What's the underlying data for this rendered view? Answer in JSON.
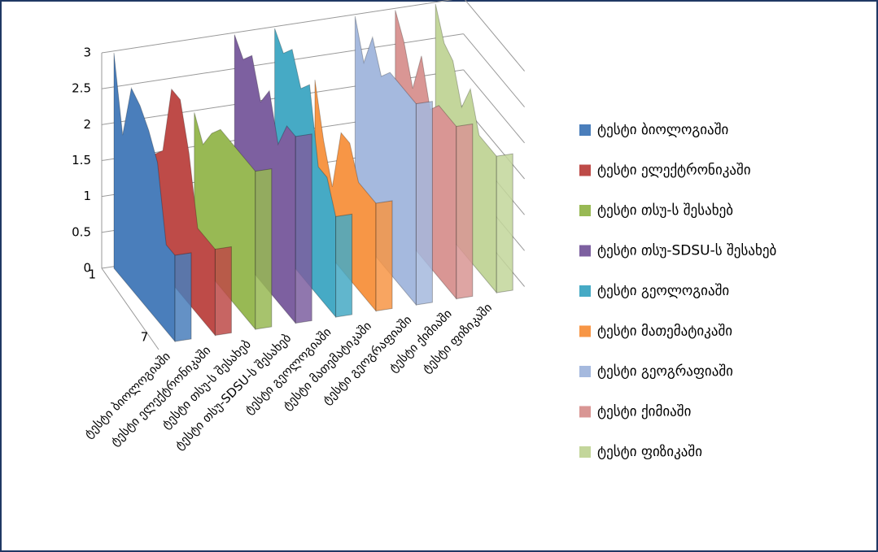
{
  "chart_data": {
    "type": "area",
    "categories": [
      "1",
      null,
      null,
      null,
      null,
      null,
      "7",
      null
    ],
    "ylim": [
      0,
      3
    ],
    "yticks": [
      0,
      0.5,
      1,
      1.5,
      2,
      2.5,
      3
    ],
    "grid": true,
    "legend": "right",
    "series": [
      {
        "name": "ტესტი ბიოლოგიაში",
        "color": "#4a7ebb",
        "values": [
          3,
          2,
          2.8,
          2.7,
          2.5,
          2.2,
          1.2,
          1.2
        ]
      },
      {
        "name": "ტესტი ელექტრონიკაში",
        "color": "#be4b48",
        "values": [
          1.5,
          1.7,
          2.7,
          2.7,
          2.1,
          1.2,
          1.2,
          1.2
        ]
      },
      {
        "name": "ტესტი თსუ-ს შესახებ",
        "color": "#98b954",
        "values": [
          2,
          1.7,
          2,
          2.2,
          2.2,
          2.2,
          2.2,
          2.2
        ]
      },
      {
        "name": "ტესტი თსუ-SDSU-ს შესახებ",
        "color": "#7d60a0",
        "values": [
          3,
          2.8,
          3,
          2.5,
          2.8,
          2.2,
          2.6,
          2.6
        ]
      },
      {
        "name": "ტესტი გეოლოგიაში",
        "color": "#46aac5",
        "values": [
          3,
          2.8,
          3,
          2.6,
          2.8,
          1.8,
          1.8,
          1.4
        ]
      },
      {
        "name": "ტესტი მათემატიკაში",
        "color": "#f79646",
        "values": [
          2.2,
          1.5,
          1,
          1.9,
          1.9,
          1.5,
          1.5,
          1.5
        ]
      },
      {
        "name": "ტესტი გეოგრაფიაში",
        "color": "#a5b9de",
        "values": [
          3,
          2.5,
          3,
          2.6,
          2.8,
          2.8,
          2.8,
          2.8
        ]
      },
      {
        "name": "ტესტი ქიმიაში",
        "color": "#d99694",
        "values": [
          3,
          2.7,
          2.2,
          2.8,
          2.2,
          2.4,
          2.4,
          2.4
        ]
      },
      {
        "name": "ტესტი ფიზიკაში",
        "color": "#c3d69b",
        "values": [
          3,
          2.6,
          2.5,
          2,
          2.4,
          1.9,
          1.9,
          1.9
        ]
      }
    ]
  }
}
